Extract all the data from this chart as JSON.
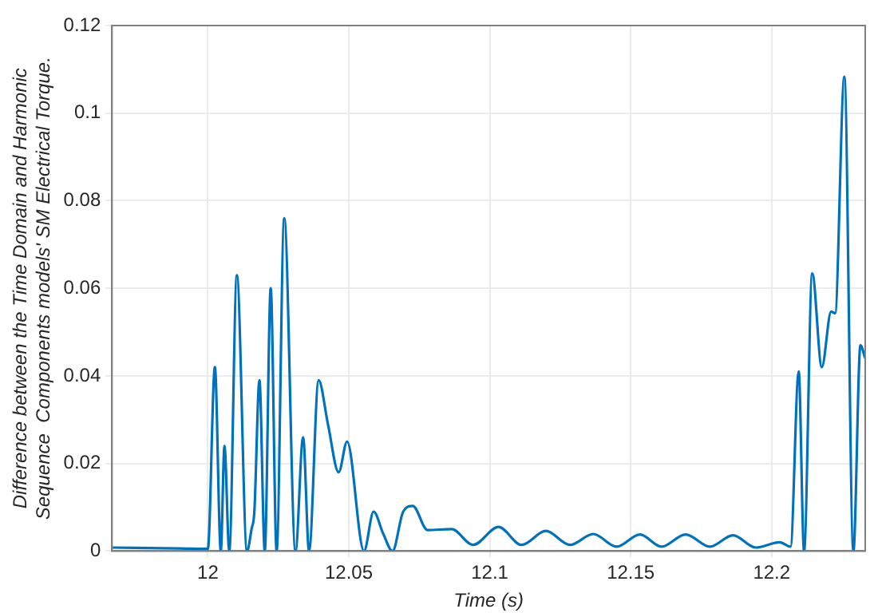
{
  "chart_data": {
    "type": "line",
    "xlabel": "Time (s)",
    "ylabel": "Difference between the Time Domain and Harmonic\nSequence  Components models' SM Electrical Torque.",
    "xlim": [
      11.966,
      12.2332
    ],
    "xticks": [
      12,
      12.05,
      12.1,
      12.15,
      12.2
    ],
    "ylim": [
      0,
      0.12
    ],
    "yticks": [
      0,
      0.02,
      0.04,
      0.06,
      0.08,
      0.1,
      0.12
    ],
    "grid": true,
    "legend": false,
    "marker": "none",
    "line_style": "solid",
    "series": [
      {
        "color": "#0072bd",
        "x": [
          11.966,
          11.99,
          12.0,
          12.0025,
          12.0046,
          12.0059,
          12.0076,
          12.0103,
          12.0139,
          12.0155,
          12.0165,
          12.0183,
          12.0202,
          12.0223,
          12.0244,
          12.0271,
          12.0311,
          12.0338,
          12.0359,
          12.0393,
          12.0426,
          12.0464,
          12.0494,
          12.0554,
          12.0588,
          12.0622,
          12.0655,
          12.0693,
          12.0727,
          12.0779,
          12.0865,
          12.0941,
          12.1031,
          12.1113,
          12.1199,
          12.1285,
          12.1367,
          12.145,
          12.1533,
          12.1609,
          12.1695,
          12.1781,
          12.1863,
          12.1943,
          12.2029,
          12.2067,
          12.2096,
          12.2115,
          12.2144,
          12.2178,
          12.2211,
          12.2225,
          12.2258,
          12.229,
          12.2315,
          12.2332
        ],
        "values": [
          0.0008,
          0.0006,
          0.0005,
          0.042,
          0,
          0.024,
          0,
          0.063,
          0,
          0.005,
          0.009,
          0.039,
          0,
          0.06,
          0,
          0.076,
          0,
          0.026,
          0,
          0.039,
          0.029,
          0.018,
          0.025,
          0,
          0.009,
          0.004,
          0,
          0.009,
          0.0103,
          0.0048,
          0.005,
          0.0014,
          0.0055,
          0.0014,
          0.0046,
          0.0014,
          0.0039,
          0.001,
          0.0038,
          0.001,
          0.0038,
          0.001,
          0.0036,
          0.0008,
          0.002,
          0.001,
          0.041,
          0,
          0.0634,
          0.042,
          0.0547,
          0.0543,
          0.1083,
          0,
          0.047,
          0.044
        ]
      }
    ]
  }
}
